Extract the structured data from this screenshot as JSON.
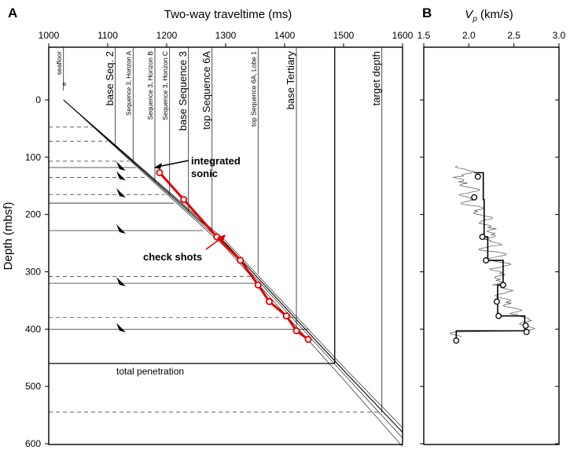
{
  "chart_data": [
    {
      "panel": "A",
      "type": "line",
      "xlabel": "Two-way traveltime (ms)",
      "ylabel": "Depth (mbsf)",
      "xlim": [
        1000,
        1600
      ],
      "ylim": [
        600,
        -80
      ],
      "x_ticks": [
        1000,
        1100,
        1200,
        1300,
        1400,
        1500,
        1600
      ],
      "y_ticks": [
        0,
        100,
        200,
        300,
        400,
        500,
        600
      ],
      "horizons": [
        {
          "label": "seafloor",
          "twt": 1025
        },
        {
          "label": "base Seq. 2",
          "twt": 1113
        },
        {
          "label": "Sequence 3, Horizon A",
          "twt": 1143
        },
        {
          "label": "Sequence 3, Horizon B",
          "twt": 1180
        },
        {
          "label": "Sequence 3, Horizon C",
          "twt": 1205
        },
        {
          "label": "base Sequence 3",
          "twt": 1237
        },
        {
          "label": "top Sequence 6A",
          "twt": 1277
        },
        {
          "label": "top Sequence 6A, Lobe 1",
          "twt": 1355
        },
        {
          "label": "base Tertiary",
          "twt": 1420
        },
        {
          "label": "target depth",
          "twt": 1565
        }
      ],
      "solid_depths": [
        118,
        180,
        228,
        320,
        400
      ],
      "dashed_depths": [
        47,
        72,
        107,
        135,
        165,
        308,
        380,
        545
      ],
      "total_penetration": {
        "label": "total penetration",
        "depth": 460,
        "twt": 1485
      },
      "annotations": {
        "sonic": "integrated sonic",
        "checkshots": "check shots"
      },
      "check_shots": {
        "twt": [
          1188,
          1229,
          1285,
          1325,
          1355,
          1374,
          1403,
          1420,
          1440
        ],
        "depth": [
          127,
          174,
          239,
          280,
          323,
          352,
          377,
          403,
          418
        ]
      },
      "velocity_models": [
        {
          "twt": [
            1025,
            1300,
            1500,
            1600
          ],
          "depth": [
            0,
            250,
            472,
            580
          ]
        },
        {
          "twt": [
            1025,
            1300,
            1500,
            1600
          ],
          "depth": [
            0,
            254,
            478,
            590
          ]
        },
        {
          "twt": [
            1025,
            1300,
            1500,
            1600
          ],
          "depth": [
            0,
            246,
            466,
            572
          ]
        },
        {
          "twt": [
            1025,
            1300,
            1500,
            1600
          ],
          "depth": [
            0,
            258,
            488,
            605
          ]
        }
      ],
      "colors": {
        "check_shots": "#e00000",
        "lines": "#000000"
      }
    },
    {
      "panel": "B",
      "type": "line",
      "xlabel_pre": "V",
      "xlabel_sub": "p",
      "xlabel_post": " (km/s)",
      "xlim": [
        1.5,
        3.0
      ],
      "ylim": [
        600,
        -80
      ],
      "x_ticks": [
        "1.5",
        "2.0",
        "2.5",
        "3.0"
      ],
      "y_ticks": [
        0,
        100,
        200,
        300,
        400,
        500,
        600
      ],
      "interval_velocity": {
        "depth": [
          127,
          127,
          174,
          174,
          239,
          239,
          280,
          280,
          323,
          323,
          352,
          352,
          377,
          377,
          403,
          403,
          418
        ],
        "vp": [
          2.06,
          2.16,
          2.16,
          2.17,
          2.17,
          2.21,
          2.21,
          2.38,
          2.38,
          2.32,
          2.32,
          2.32,
          2.32,
          2.62,
          2.62,
          1.86,
          1.86
        ]
      },
      "check_points": {
        "depth": [
          134,
          170,
          239,
          280,
          323,
          352,
          377,
          394,
          405,
          420
        ],
        "vp": [
          2.1,
          2.06,
          2.15,
          2.19,
          2.38,
          2.31,
          2.33,
          2.63,
          2.64,
          1.86
        ]
      },
      "sonic_log": {
        "depth": [
          115,
          125,
          135,
          145,
          155,
          165,
          175,
          185,
          195,
          205,
          215,
          225,
          235,
          245,
          255,
          265,
          275,
          285,
          295,
          305,
          315,
          325,
          335,
          345,
          355,
          365,
          375,
          385,
          395,
          405
        ],
        "vp": [
          1.92,
          1.99,
          1.88,
          1.97,
          2.05,
          1.96,
          1.98,
          2.1,
          2.12,
          2.2,
          2.18,
          2.27,
          2.23,
          2.3,
          2.18,
          2.35,
          2.28,
          2.4,
          2.3,
          2.35,
          2.31,
          2.42,
          2.36,
          2.4,
          2.45,
          2.52,
          2.6,
          2.63,
          2.66,
          1.86
        ]
      }
    }
  ],
  "panel_labels": {
    "a": "A",
    "b": "B"
  }
}
